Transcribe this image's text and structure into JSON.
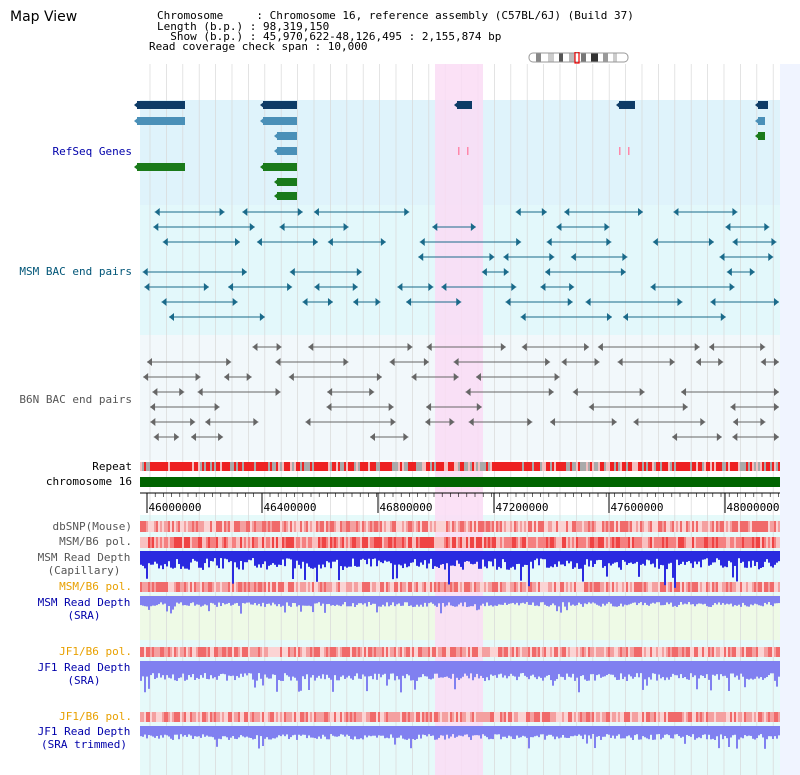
{
  "page": {
    "title": "Map View"
  },
  "header": {
    "chromosome_label": "Chromosome     : Chromosome 16, reference assembly (C57BL/6J) (Build 37)",
    "length_label": "Length (b.p.) : 98,319,150",
    "show_label": "  Show (b.p.) : 45,970,622-48,126,495 : 2,155,874 bp",
    "coverage_label": "Read coverage check span : 10,000"
  },
  "tracks": {
    "refseq": "RefSeq Genes",
    "msm_bac": "MSM BAC end pairs",
    "b6n_bac": "B6N BAC end pairs",
    "repeat": "Repeat",
    "chromosome": "chromosome 16",
    "dbsnp": "dbSNP(Mouse)",
    "msm_b6_pol_1": "MSM/B6 pol.",
    "msm_depth_cap_1": "MSM Read Depth",
    "msm_depth_cap_2": "(Capillary)",
    "msm_b6_pol_2": "MSM/B6 pol.",
    "msm_depth_sra_1": "MSM Read Depth",
    "msm_depth_sra_2": "(SRA)",
    "jf1_b6_pol_1": "JF1/B6 pol.",
    "jf1_depth_sra_1": "JF1 Read Depth",
    "jf1_depth_sra_2": "(SRA)",
    "jf1_b6_pol_2": "JF1/B6 pol.",
    "jf1_depth_trim_1": "JF1 Read Depth",
    "jf1_depth_trim_2": "(SRA trimmed)"
  },
  "axis": {
    "ticks": [
      "46000000",
      "46400000",
      "46800000",
      "47200000",
      "47600000",
      "48000000"
    ]
  },
  "colors": {
    "refseq_bg": "#dff3fb",
    "bac_bg": "#e3f8fb",
    "highlight": "#fadcf5",
    "chromosome": "#006400",
    "repeat_red": "#ee2222",
    "depth_blue": "#2a2ae0",
    "sra_blue": "#8080f0",
    "label_blue": "#0000aa",
    "label_teal": "#005577",
    "label_orange": "#e8a000",
    "label_gray": "#555555"
  }
}
